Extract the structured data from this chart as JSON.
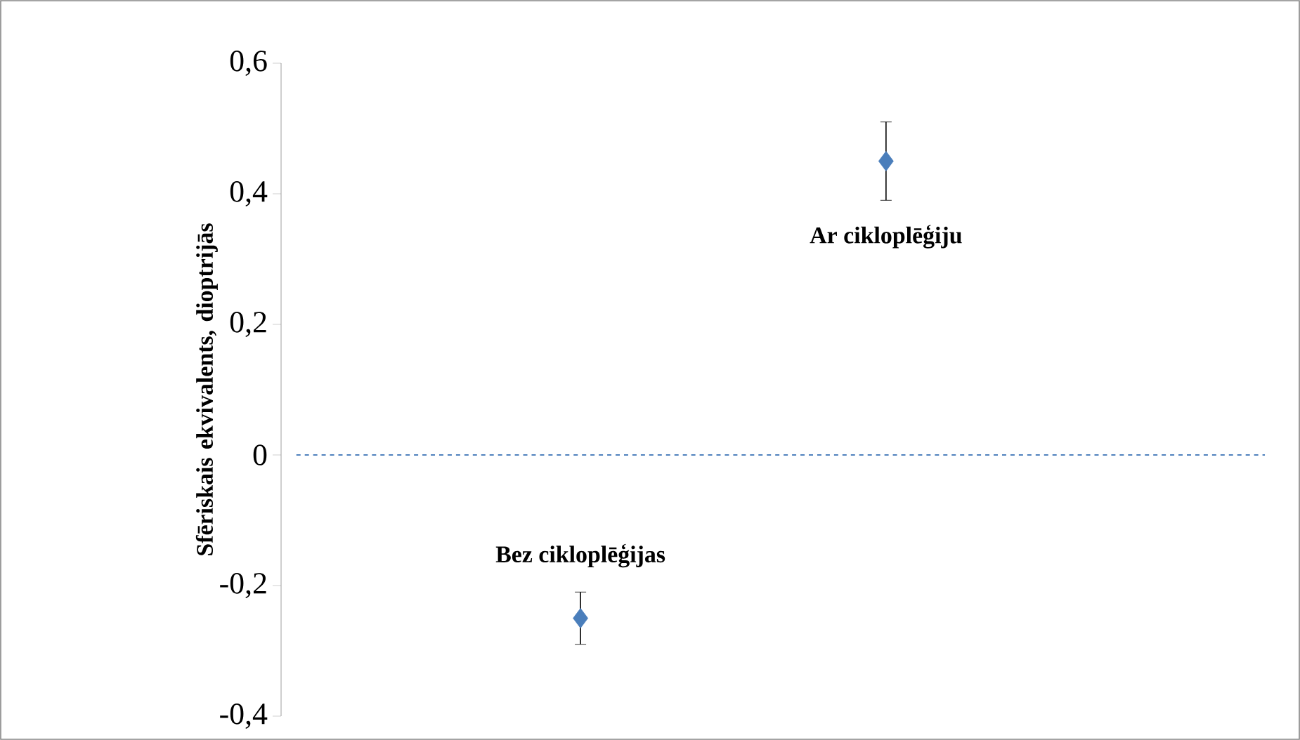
{
  "chart_data": {
    "type": "scatter",
    "ylabel": "Sfēriskais ekvivalents, dioptrijās",
    "categories": [
      null,
      null
    ],
    "values": [
      -0.25,
      0.45
    ],
    "errors": [
      0.04,
      0.06
    ],
    "color": "#4a7ebb",
    "marker": "diamond",
    "ylim": [
      -0.4,
      0.6
    ],
    "yticks": [
      {
        "value": -0.4,
        "label": "-0,4"
      },
      {
        "value": -0.2,
        "label": "-0,2"
      },
      0,
      {
        "value": 0.2,
        "label": "0,2"
      },
      {
        "value": 0.4,
        "label": "0,4"
      },
      {
        "value": 0.6,
        "label": "0,6"
      }
    ],
    "ref_lines": [
      {
        "axis": "y",
        "value": 0,
        "color": "#4f81bd",
        "line_style": "dashed"
      }
    ],
    "annotations": [
      "Bez cikloplēģijas",
      "Ar cikloplēģiju"
    ]
  }
}
